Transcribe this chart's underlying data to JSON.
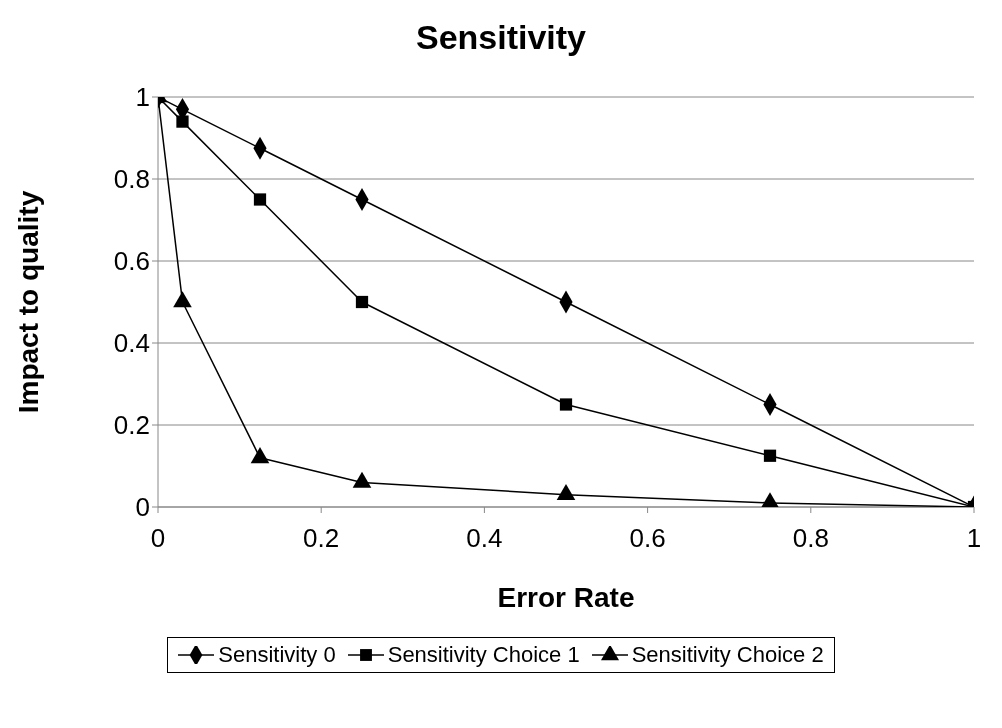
{
  "chart_data": {
    "type": "line",
    "title": "Sensitivity",
    "xlabel": "Error Rate",
    "ylabel": "Impact to quality",
    "x": [
      0,
      0.03,
      0.125,
      0.25,
      0.5,
      0.75,
      1
    ],
    "series": [
      {
        "name": "Sensitivity 0",
        "color": "#000000",
        "marker": "diamond",
        "values": [
          1,
          0.97,
          0.875,
          0.75,
          0.5,
          0.25,
          0
        ]
      },
      {
        "name": "Sensitivity Choice 1",
        "color": "#000000",
        "marker": "square",
        "values": [
          1,
          0.94,
          0.75,
          0.5,
          0.25,
          0.125,
          0
        ]
      },
      {
        "name": "Sensitivity Choice 2",
        "color": "#000000",
        "marker": "triangle",
        "values": [
          1,
          0.5,
          0.12,
          0.06,
          0.03,
          0.01,
          0
        ]
      }
    ],
    "xlim": [
      0,
      1
    ],
    "xticks": [
      0,
      0.2,
      0.4,
      0.6,
      0.8,
      1
    ],
    "ylim": [
      0,
      1
    ],
    "yticks": [
      0,
      0.2,
      0.4,
      0.6,
      0.8,
      1
    ],
    "grid": "y",
    "legend": "bottom",
    "line_style": "solid"
  }
}
